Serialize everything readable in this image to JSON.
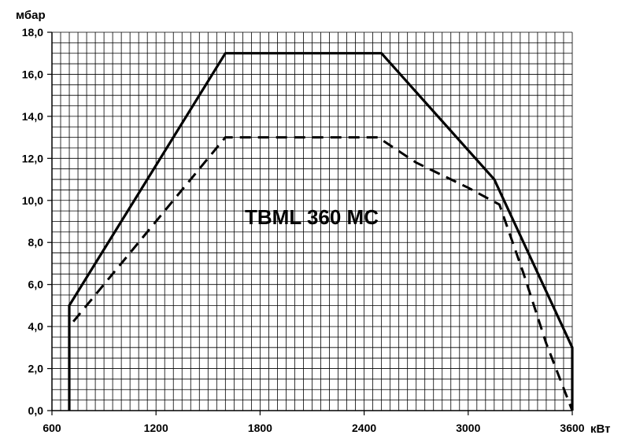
{
  "chart_data": {
    "type": "line",
    "title": "TBML 360 MC",
    "xlabel": "кВт",
    "ylabel": "мбар",
    "xlim": [
      600,
      3600
    ],
    "ylim": [
      0,
      18
    ],
    "x_ticks": [
      "600",
      "1200",
      "1800",
      "2400",
      "3000",
      "3600"
    ],
    "y_ticks": [
      "0,0",
      "2,0",
      "4,0",
      "6,0",
      "8,0",
      "10,0",
      "12,0",
      "14,0",
      "16,0",
      "18,0"
    ],
    "grid": true,
    "series": [
      {
        "style": "solid",
        "points": [
          [
            700,
            0
          ],
          [
            700,
            5
          ],
          [
            1600,
            17
          ],
          [
            2500,
            17
          ],
          [
            3150,
            11
          ],
          [
            3600,
            3
          ],
          [
            3600,
            0
          ]
        ]
      },
      {
        "style": "dashed",
        "points": [
          [
            700,
            0
          ],
          [
            700,
            4
          ],
          [
            1000,
            7
          ],
          [
            1250,
            9.5
          ],
          [
            1600,
            13
          ],
          [
            2480,
            13
          ],
          [
            2700,
            11.8
          ],
          [
            3000,
            10.6
          ],
          [
            3180,
            9.8
          ],
          [
            3320,
            6.5
          ],
          [
            3450,
            3.2
          ],
          [
            3600,
            0
          ]
        ]
      }
    ]
  }
}
